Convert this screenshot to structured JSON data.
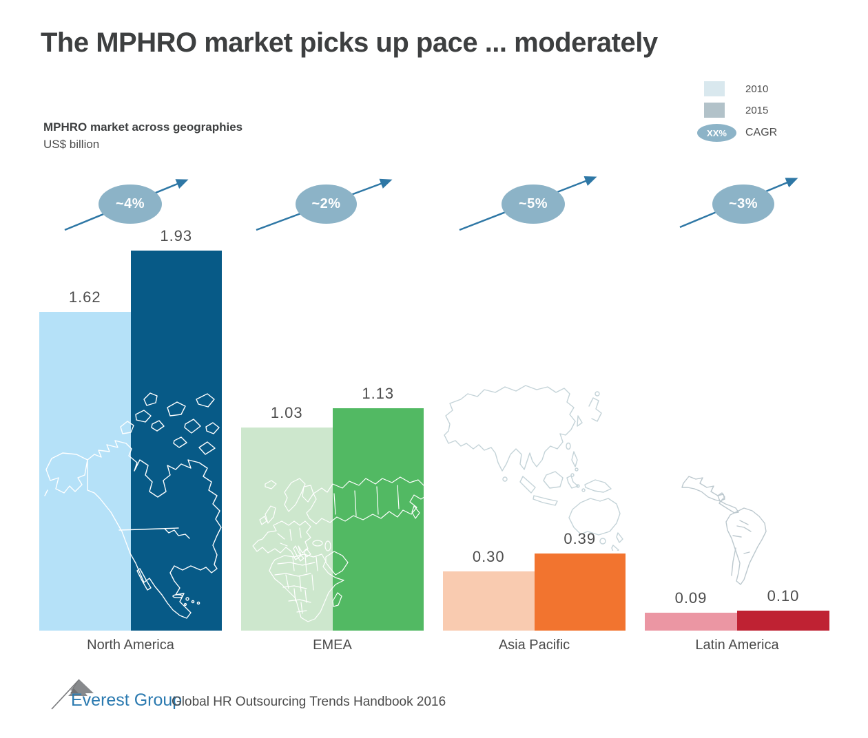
{
  "title": "The MPHRO market picks up pace ... moderately",
  "legend": {
    "year1": "2010",
    "year2": "2015",
    "year1_color": "#d9e8ee",
    "year2_color": "#b2c2c9",
    "cagr_badge": "XX%",
    "cagr_label": "CAGR"
  },
  "chart_label": {
    "title": "MPHRO market across geographies",
    "unit": "US$ billion"
  },
  "chart_data": {
    "type": "bar",
    "title": "MPHRO market across geographies",
    "ylabel": "US$ billion",
    "categories": [
      "North America",
      "EMEA",
      "Asia Pacific",
      "Latin America"
    ],
    "series": [
      {
        "name": "2010",
        "values": [
          1.62,
          1.03,
          0.3,
          0.09
        ],
        "labels": [
          "1.62",
          "1.03",
          "0.30",
          "0.09"
        ],
        "colors": [
          "#b5e1f8",
          "#cde7cd",
          "#f9cbb0",
          "#eb96a3"
        ]
      },
      {
        "name": "2015",
        "values": [
          1.93,
          1.13,
          0.39,
          0.1
        ],
        "labels": [
          "1.93",
          "1.13",
          "0.39",
          "0.10"
        ],
        "colors": [
          "#075a87",
          "#52b963",
          "#f2742f",
          "#bf2233"
        ]
      }
    ],
    "cagr": [
      "~4%",
      "~2%",
      "~5%",
      "~3%"
    ],
    "cagr_color": "#8cb3c7",
    "arrow_color": "#2e77a5",
    "legend_position": "top-right",
    "grid": false,
    "ylim": [
      0,
      2
    ]
  },
  "footer": {
    "brand": "Everest Group",
    "source": "Global HR Outsourcing Trends Handbook 2016"
  }
}
